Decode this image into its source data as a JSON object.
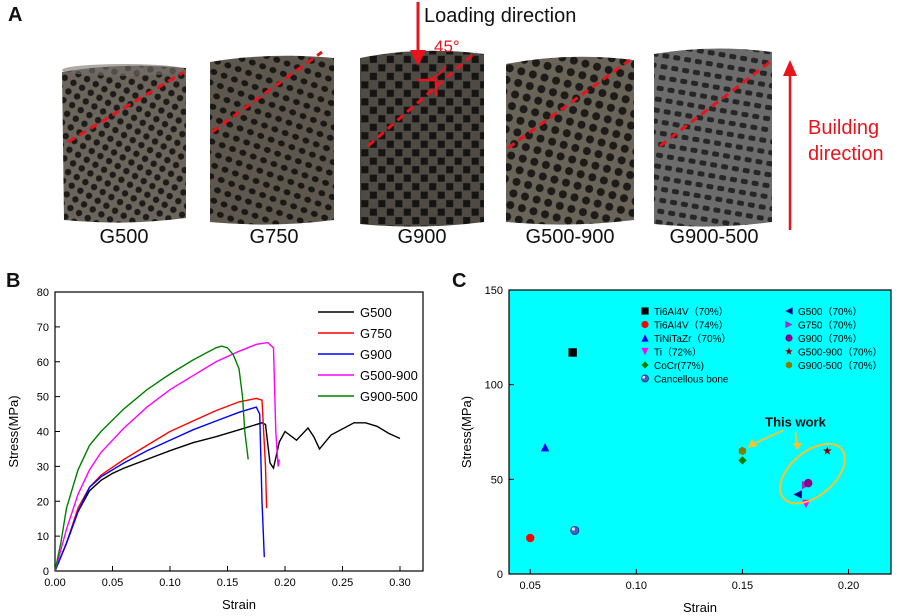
{
  "panel_a": {
    "letter": "A",
    "loading_direction": "Loading direction",
    "angle": "45°",
    "building_direction": [
      "Building",
      "direction"
    ],
    "samples": [
      "G500",
      "G750",
      "G900",
      "G500-900",
      "G900-500"
    ],
    "colors": {
      "arrow": "#e8141c",
      "lattice": "#3d3a36",
      "lattice_alt": "#4a4a4a"
    }
  },
  "chart_data": [
    {
      "letter": "B",
      "type": "line",
      "xlabel": "Strain",
      "ylabel": "Stress(MPa)",
      "xlim": [
        0,
        0.32
      ],
      "ylim": [
        0,
        80
      ],
      "xticks": [
        "0.00",
        "0.05",
        "0.10",
        "0.15",
        "0.20",
        "0.25",
        "0.30"
      ],
      "yticks": [
        "0",
        "10",
        "20",
        "30",
        "40",
        "50",
        "60",
        "70",
        "80"
      ],
      "legend_position": "top-right",
      "series": [
        {
          "name": "G500",
          "color": "#000000",
          "x": [
            0,
            0.01,
            0.02,
            0.03,
            0.04,
            0.05,
            0.06,
            0.08,
            0.1,
            0.12,
            0.14,
            0.16,
            0.18,
            0.183,
            0.187,
            0.19,
            0.195,
            0.2,
            0.21,
            0.22,
            0.225,
            0.23,
            0.24,
            0.26,
            0.27,
            0.28,
            0.29,
            0.3
          ],
          "y": [
            0,
            8,
            17,
            23,
            26,
            28,
            29.5,
            32,
            34.5,
            36.8,
            38.5,
            40.5,
            42.5,
            42,
            31,
            29.5,
            37,
            40,
            37.5,
            41,
            38.5,
            35,
            39,
            42.5,
            42.5,
            41.5,
            39.5,
            38
          ]
        },
        {
          "name": "G750",
          "color": "#ff0000",
          "x": [
            0,
            0.01,
            0.02,
            0.03,
            0.04,
            0.06,
            0.08,
            0.1,
            0.12,
            0.14,
            0.16,
            0.175,
            0.18,
            0.183,
            0.184
          ],
          "y": [
            0,
            8,
            18,
            24,
            27.5,
            32,
            36,
            40,
            43,
            46,
            48.5,
            49.5,
            49,
            30,
            18
          ]
        },
        {
          "name": "G900",
          "color": "#0000ff",
          "x": [
            0,
            0.01,
            0.02,
            0.03,
            0.04,
            0.06,
            0.08,
            0.1,
            0.12,
            0.14,
            0.16,
            0.17,
            0.175,
            0.178,
            0.18,
            0.182
          ],
          "y": [
            0,
            8,
            17,
            24,
            27,
            31,
            34.5,
            37.5,
            40.5,
            43,
            45.5,
            46.5,
            47,
            45,
            20,
            4
          ]
        },
        {
          "name": "G500-900",
          "color": "#ff00ff",
          "x": [
            0,
            0.01,
            0.02,
            0.03,
            0.04,
            0.06,
            0.08,
            0.1,
            0.12,
            0.14,
            0.16,
            0.175,
            0.185,
            0.19,
            0.192,
            0.194,
            0.195
          ],
          "y": [
            0,
            12,
            22,
            29,
            34,
            41,
            47,
            52,
            56,
            60,
            63,
            65,
            65.5,
            64,
            40,
            30,
            32
          ]
        },
        {
          "name": "G900-500",
          "color": "#008000",
          "x": [
            0,
            0.005,
            0.01,
            0.02,
            0.03,
            0.04,
            0.06,
            0.08,
            0.1,
            0.12,
            0.14,
            0.145,
            0.15,
            0.155,
            0.16,
            0.163,
            0.165,
            0.168
          ],
          "y": [
            0,
            8,
            18,
            29,
            36,
            40,
            46.5,
            52,
            56.5,
            60.5,
            64,
            64.5,
            64,
            62,
            58,
            50,
            40,
            32
          ]
        }
      ]
    },
    {
      "letter": "C",
      "type": "scatter",
      "xlabel": "Strain",
      "ylabel": "Stress(MPa)",
      "xlim": [
        0.04,
        0.22
      ],
      "ylim": [
        0,
        150
      ],
      "xticks": [
        "0.05",
        "0.10",
        "0.15",
        "0.20"
      ],
      "yticks": [
        "0",
        "50",
        "100",
        "150"
      ],
      "background": "#00ffff",
      "annotation": "This work",
      "annotation_color": "#f4c430",
      "series": [
        {
          "name": "Ti6Al4V（70%）",
          "marker": "square",
          "color": "#000000",
          "x": 0.07,
          "y": 117
        },
        {
          "name": "Ti6Al4V（74%）",
          "marker": "circle",
          "color": "#ff0000",
          "x": 0.05,
          "y": 19
        },
        {
          "name": "TiNiTaZr（70%）",
          "marker": "triangle-up",
          "color": "#0000ff",
          "x": 0.057,
          "y": 67
        },
        {
          "name": "Ti（72%）",
          "marker": "triangle-down",
          "color": "#ff00ff",
          "x": 0.18,
          "y": 37
        },
        {
          "name": "CoCr(77%)",
          "marker": "diamond",
          "color": "#008000",
          "x": 0.15,
          "y": 60
        },
        {
          "name": "Cancellous bone",
          "marker": "sphere",
          "color": "#4060d0",
          "x": 0.071,
          "y": 23
        },
        {
          "name": "G500（70%）",
          "marker": "triangle-left",
          "color": "#00008b",
          "x": 0.176,
          "y": 42
        },
        {
          "name": "G750（70%）",
          "marker": "triangle-right",
          "color": "#9932cc",
          "x": 0.18,
          "y": 47
        },
        {
          "name": "G900（70%）",
          "marker": "circle",
          "color": "#8b008b",
          "x": 0.181,
          "y": 48
        },
        {
          "name": "G500-900（70%）",
          "marker": "star",
          "color": "#8b0000",
          "x": 0.19,
          "y": 65
        },
        {
          "name": "G900-500（70%）",
          "marker": "hexagon",
          "color": "#808000",
          "x": 0.15,
          "y": 65
        }
      ]
    }
  ]
}
